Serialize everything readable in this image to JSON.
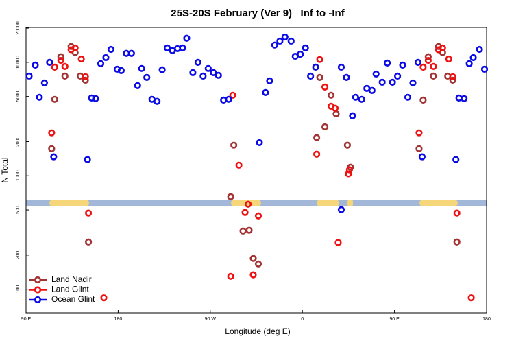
{
  "chart_data": {
    "type": "scatter",
    "title": "25S-20S February (Ver 9)   Inf to -Inf",
    "x_label": "Longitude (deg E)",
    "y_label": "N Total",
    "xlim": [
      90,
      540
    ],
    "xticks": [
      {
        "value": 90,
        "label": "90 E"
      },
      180,
      {
        "value": 270,
        "label": "90 W"
      },
      {
        "value": 360,
        "label": "0"
      },
      {
        "value": 450,
        "label": "90 E"
      },
      {
        "value": 540,
        "label": "180"
      }
    ],
    "ylim": [
      62,
      20300
    ],
    "yticks": [
      100,
      200,
      500,
      1000,
      2000,
      5000,
      10000,
      20000
    ],
    "y_log": true,
    "legend": "lower left",
    "series": [
      {
        "name": "Land Nadir",
        "color": "#a33333",
        "x": [
          115,
          118,
          124,
          128,
          134,
          138,
          143,
          148,
          151,
          290,
          293,
          302,
          308,
          312,
          317,
          374,
          377,
          382,
          388,
          393,
          404,
          407,
          474,
          478,
          483,
          488,
          493,
          497,
          502,
          507,
          511
        ],
        "values": [
          1730,
          4720,
          11200,
          7570,
          13800,
          12200,
          7570,
          6960,
          261,
          654,
          1860,
          326,
          331,
          187,
          167,
          2170,
          7360,
          2700,
          5130,
          3520,
          1860,
          1190,
          1730,
          4650,
          11200,
          7570,
          13800,
          12200,
          7570,
          6960,
          261
        ]
      },
      {
        "name": "Land Glint",
        "color": "#ee1111",
        "x": [
          115,
          118,
          124,
          128,
          134,
          138,
          144,
          148,
          151,
          166,
          290,
          292,
          298,
          304,
          307,
          312,
          317,
          377,
          374,
          382,
          388,
          392,
          405,
          406,
          395,
          474,
          478,
          483,
          488,
          493,
          497,
          503,
          507,
          511,
          525
        ],
        "values": [
          2390,
          9070,
          10400,
          9200,
          12900,
          13400,
          10700,
          7470,
          469,
          84,
          130,
          5130,
          1240,
          475,
          561,
          134,
          443,
          10600,
          1550,
          6060,
          4100,
          3940,
          1040,
          1130,
          258,
          2390,
          9070,
          10400,
          9200,
          12900,
          13400,
          10700,
          7470,
          469,
          84
        ]
      },
      {
        "name": "Ocean Glint",
        "color": "#0a0ae6",
        "x": [
          93,
          99,
          103,
          108,
          113,
          117,
          150,
          154,
          158,
          163,
          168,
          173,
          179,
          183,
          188,
          193,
          199,
          203,
          208,
          213,
          218,
          223,
          228,
          233,
          238,
          243,
          247,
          253,
          258,
          263,
          268,
          273,
          278,
          283,
          288,
          318,
          324,
          328,
          333,
          338,
          343,
          349,
          353,
          358,
          363,
          368,
          373,
          398,
          398,
          403,
          409,
          412,
          418,
          423,
          428,
          432,
          438,
          443,
          448,
          453,
          458,
          463,
          468,
          473,
          477,
          510,
          513,
          518,
          523,
          527,
          533,
          538
        ],
        "values": [
          7570,
          9460,
          4920,
          6590,
          10000,
          1470,
          1390,
          4850,
          4790,
          9730,
          11000,
          13000,
          8700,
          8460,
          12000,
          12000,
          6230,
          8830,
          7360,
          4720,
          4530,
          8590,
          13400,
          12700,
          13200,
          13400,
          16300,
          8110,
          10000,
          7570,
          8830,
          8110,
          7680,
          4650,
          4720,
          1960,
          5420,
          6870,
          14200,
          15400,
          16700,
          15400,
          11300,
          11800,
          13400,
          7570,
          9070,
          502,
          9070,
          7360,
          3380,
          4920,
          4720,
          5890,
          5650,
          7890,
          6680,
          9860,
          6680,
          7570,
          9460,
          4920,
          6590,
          10000,
          1470,
          1390,
          4850,
          4790,
          9730,
          11000,
          13000,
          8700
        ]
      }
    ]
  }
}
